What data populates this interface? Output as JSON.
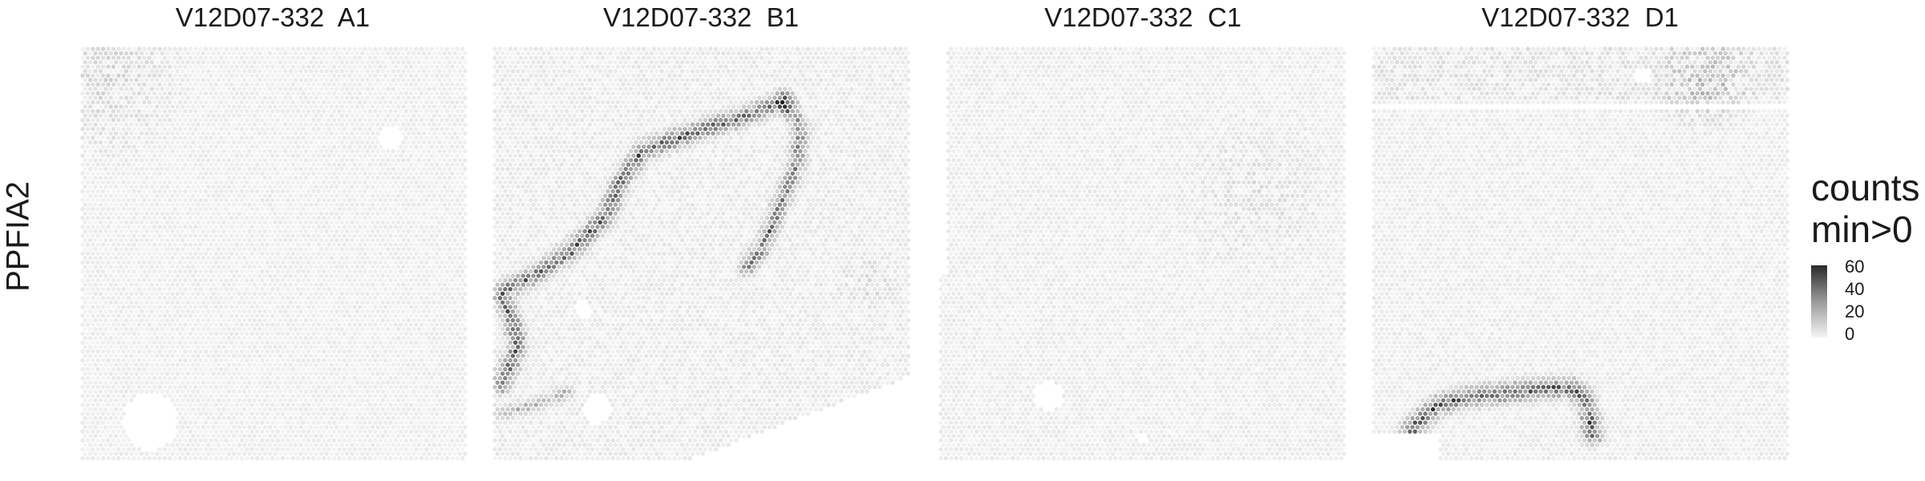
{
  "chart_data": {
    "type": "heatmap",
    "subtype": "spatial-transcriptomics-spot-plot",
    "gene": "PPFIA2",
    "panels": [
      {
        "title": "V12D07-332  A1",
        "pattern": "uniform-low",
        "max_count": 12,
        "hotspot_region": "top-left corner"
      },
      {
        "title": "V12D07-332  B1",
        "pattern": "curved-band",
        "max_count": 60,
        "hotspot_region": "diagonal band from lower-left to upper-middle"
      },
      {
        "title": "V12D07-332  C1",
        "pattern": "uniform-low",
        "max_count": 10,
        "hotspot_region": "none"
      },
      {
        "title": "V12D07-332  D1",
        "pattern": "bottom-arc",
        "max_count": 55,
        "hotspot_region": "top band and bottom arc"
      }
    ],
    "legend": {
      "title_lines": [
        "counts",
        "min>0"
      ],
      "ticks": [
        60,
        40,
        20,
        0
      ],
      "min": 0,
      "max": 65,
      "color_low": "#f2f2f2",
      "color_high": "#1f1f1f"
    }
  }
}
